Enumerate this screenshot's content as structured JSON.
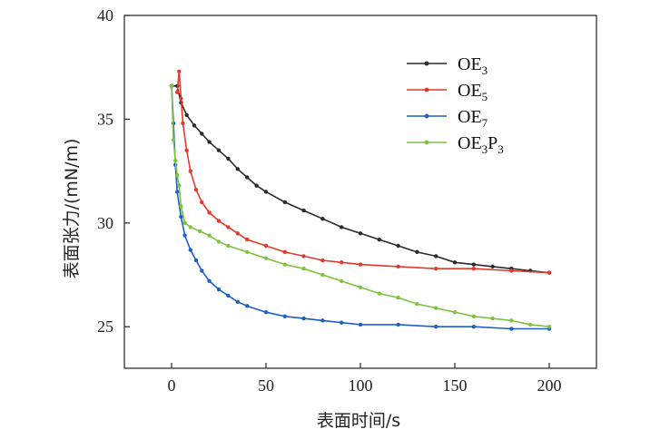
{
  "chart_data": {
    "type": "line",
    "xlabel": "表面时间/s",
    "ylabel": "表面张力/(mN/m)",
    "xlim": [
      -25,
      225
    ],
    "ylim": [
      23,
      40
    ],
    "xticks": [
      0,
      50,
      100,
      150,
      200
    ],
    "yticks": [
      25,
      30,
      35,
      40
    ],
    "legend_position": "top-right",
    "series": [
      {
        "name": "OE3",
        "label_main": "OE",
        "label_sub": "3",
        "color": "#2b2b2b",
        "x": [
          0,
          3,
          5,
          8,
          12,
          16,
          20,
          25,
          30,
          35,
          40,
          45,
          50,
          60,
          70,
          80,
          90,
          100,
          110,
          120,
          130,
          140,
          150,
          160,
          170,
          180,
          190,
          200
        ],
        "y": [
          36.6,
          36.6,
          35.8,
          35.2,
          34.7,
          34.3,
          33.9,
          33.5,
          33.1,
          32.6,
          32.2,
          31.8,
          31.5,
          31.0,
          30.6,
          30.2,
          29.8,
          29.5,
          29.2,
          28.9,
          28.6,
          28.4,
          28.1,
          28.0,
          27.9,
          27.8,
          27.7,
          27.6
        ]
      },
      {
        "name": "OE5",
        "label_main": "OE",
        "label_sub": "5",
        "color": "#e03a2e",
        "x": [
          3,
          4,
          5,
          6,
          8,
          10,
          13,
          16,
          20,
          25,
          30,
          35,
          40,
          50,
          60,
          70,
          80,
          90,
          100,
          120,
          140,
          160,
          180,
          200
        ],
        "y": [
          36.3,
          37.3,
          36.0,
          34.8,
          33.5,
          32.5,
          31.6,
          31.0,
          30.5,
          30.1,
          29.8,
          29.5,
          29.2,
          28.9,
          28.6,
          28.4,
          28.2,
          28.1,
          28.0,
          27.9,
          27.8,
          27.8,
          27.7,
          27.6
        ]
      },
      {
        "name": "OE7",
        "label_main": "OE",
        "label_sub": "7",
        "color": "#1f5fbf",
        "x": [
          0,
          1,
          2,
          3,
          5,
          7,
          10,
          13,
          16,
          20,
          25,
          30,
          35,
          40,
          50,
          60,
          70,
          80,
          90,
          100,
          120,
          140,
          160,
          180,
          200
        ],
        "y": [
          36.6,
          34.8,
          32.8,
          31.5,
          30.3,
          29.4,
          28.7,
          28.2,
          27.7,
          27.2,
          26.8,
          26.5,
          26.2,
          26.0,
          25.7,
          25.5,
          25.4,
          25.3,
          25.2,
          25.1,
          25.1,
          25.0,
          25.0,
          24.9,
          24.9
        ]
      },
      {
        "name": "OE3P3",
        "label_main": "OE",
        "label_sub": "3",
        "label_main2": "P",
        "label_sub2": "3",
        "color": "#7ec242",
        "x": [
          0,
          1,
          2,
          3,
          4,
          5,
          7,
          10,
          15,
          20,
          25,
          30,
          40,
          50,
          60,
          70,
          80,
          90,
          100,
          110,
          120,
          130,
          140,
          150,
          160,
          170,
          180,
          190,
          200
        ],
        "y": [
          36.6,
          34.0,
          33.0,
          32.3,
          31.8,
          30.8,
          30.0,
          29.8,
          29.6,
          29.4,
          29.1,
          28.9,
          28.6,
          28.3,
          28.0,
          27.8,
          27.5,
          27.2,
          26.9,
          26.6,
          26.4,
          26.1,
          25.9,
          25.7,
          25.5,
          25.4,
          25.3,
          25.1,
          25.0
        ]
      }
    ]
  }
}
